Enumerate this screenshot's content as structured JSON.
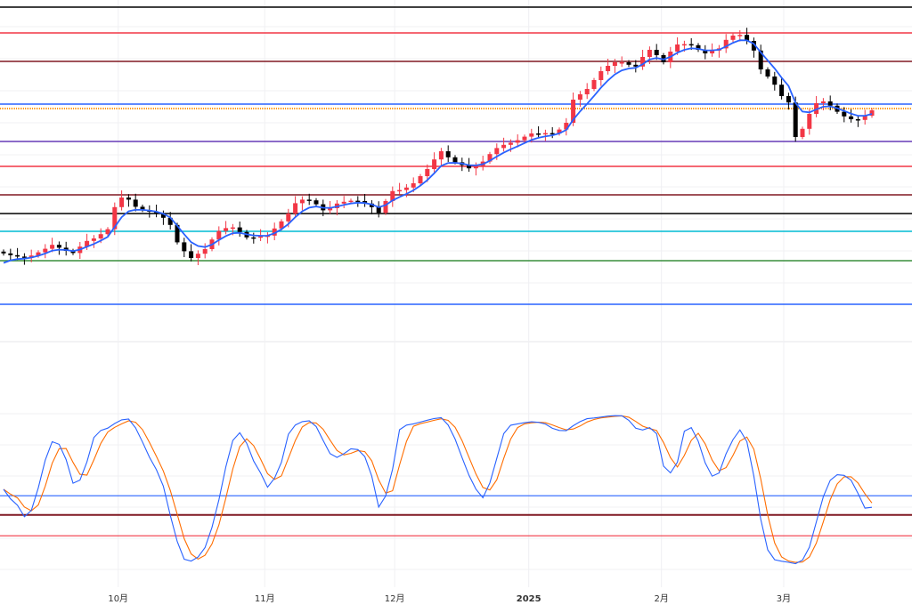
{
  "chart_data": {
    "type": "candlestick",
    "title": "",
    "x_tick_labels": [
      {
        "label": "10月",
        "index": 16.5
      },
      {
        "label": "11月",
        "index": 37.6
      },
      {
        "label": "12月",
        "index": 56.3
      },
      {
        "label": "2025",
        "index": 75.6
      },
      {
        "label": "2月",
        "index": 94.7
      },
      {
        "label": "3月",
        "index": 112.3
      }
    ],
    "price_range": [
      0,
      100
    ],
    "closes": [
      28.8,
      28.3,
      27.9,
      27.6,
      28.2,
      29.1,
      30.1,
      31.2,
      30.4,
      29.5,
      28.9,
      30.7,
      32.3,
      33.0,
      34.2,
      35.6,
      41.8,
      44.5,
      43.9,
      41.9,
      41.0,
      40.5,
      39.9,
      38.8,
      36.8,
      31.9,
      29.4,
      27.5,
      28.7,
      30.0,
      32.7,
      35.1,
      35.9,
      36.1,
      34.8,
      33.3,
      33.2,
      33.6,
      33.8,
      35.8,
      37.8,
      40.0,
      42.9,
      43.9,
      43.7,
      42.6,
      40.9,
      41.5,
      42.8,
      43.3,
      43.6,
      43.5,
      42.8,
      41.8,
      40.2,
      43.5,
      46.3,
      46.6,
      47.3,
      48.5,
      50.5,
      52.5,
      55.2,
      57.5,
      55.8,
      54.4,
      53.6,
      52.7,
      53.4,
      54.6,
      56.7,
      58.4,
      59.3,
      59.9,
      60.6,
      61.6,
      62.5,
      62.4,
      62.6,
      62.5,
      63.6,
      65.5,
      72.0,
      73.5,
      75.0,
      77.5,
      80.0,
      81.5,
      82.5,
      82.5,
      81.8,
      81.3,
      84.0,
      86.0,
      84.5,
      82.5,
      85.5,
      87.5,
      87.6,
      87.3,
      86.0,
      85.0,
      85.8,
      86.4,
      88.8,
      90.0,
      90.2,
      88.5,
      85.8,
      80.5,
      78.5,
      76.2,
      73.0,
      71.2,
      61.5,
      63.8,
      68.0,
      71.0,
      71.5,
      70.3,
      68.6,
      67.3,
      66.5,
      66.3,
      67.5,
      69.0
    ],
    "moving_average": {
      "name": "EMA",
      "period": 5,
      "color": "#2962ff"
    },
    "horizontal_levels": [
      {
        "price": 98.0,
        "color": "#000000"
      },
      {
        "price": 90.75,
        "color": "#f23645"
      },
      {
        "price": 82.75,
        "color": "#801922"
      },
      {
        "price": 70.75,
        "color": "#2962ff"
      },
      {
        "price": 69.5,
        "color": "#ff9800",
        "style": "dotted"
      },
      {
        "price": 60.25,
        "color": "#673ab7"
      },
      {
        "price": 53.25,
        "color": "#f23645"
      },
      {
        "price": 45.25,
        "color": "#801922"
      },
      {
        "price": 40.0,
        "color": "#000000"
      },
      {
        "price": 35.0,
        "color": "#00bcd4"
      },
      {
        "price": 26.75,
        "color": "#388e3c"
      },
      {
        "price": 14.5,
        "color": "#2962ff"
      }
    ],
    "oscillator": {
      "type": "stochastic",
      "k_period": 9,
      "smooth": 3,
      "range": [
        0,
        100
      ],
      "k_color": "#2962ff",
      "d_color": "#ff6d00",
      "levels": [
        {
          "value": 46,
          "color": "#2962ff"
        },
        {
          "value": 34,
          "color": "#801922"
        },
        {
          "value": 21,
          "color": "#f23645"
        }
      ]
    },
    "colors": {
      "up": "#f23645",
      "down": "#000000"
    }
  }
}
